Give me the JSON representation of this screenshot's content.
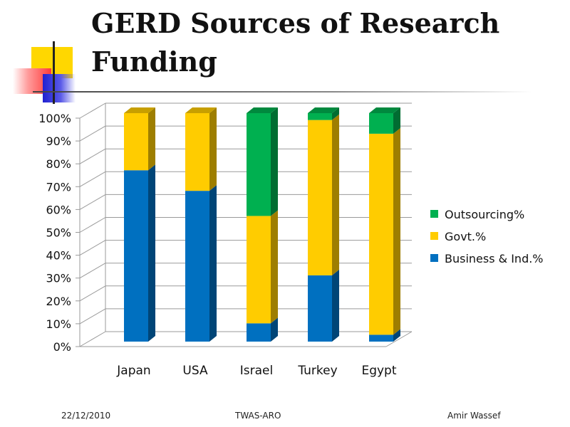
{
  "slide": {
    "title_line1": "GERD Sources of Research",
    "title_line2": "Funding",
    "footer": {
      "date": "22/12/2010",
      "center": "TWAS-ARO",
      "author": "Amir Wassef"
    }
  },
  "chart_data": {
    "type": "bar",
    "stacked": true,
    "three_d": true,
    "categories": [
      "Japan",
      "USA",
      "Israel",
      "Turkey",
      "Egypt"
    ],
    "series": [
      {
        "name": "Business & Ind.%",
        "color": "#0070c0",
        "values": [
          75,
          66,
          8,
          29,
          3
        ]
      },
      {
        "name": "Govt.%",
        "color": "#ffcc00",
        "values": [
          25,
          34,
          47,
          68,
          88
        ]
      },
      {
        "name": "Outsourcing%",
        "color": "#00b050",
        "values": [
          0,
          0,
          45,
          3,
          9
        ]
      }
    ],
    "yticks": [
      "0%",
      "10%",
      "20%",
      "30%",
      "40%",
      "50%",
      "60%",
      "70%",
      "80%",
      "90%",
      "100%"
    ],
    "ylim": [
      0,
      100
    ],
    "grid": true,
    "legend_position": "right"
  }
}
